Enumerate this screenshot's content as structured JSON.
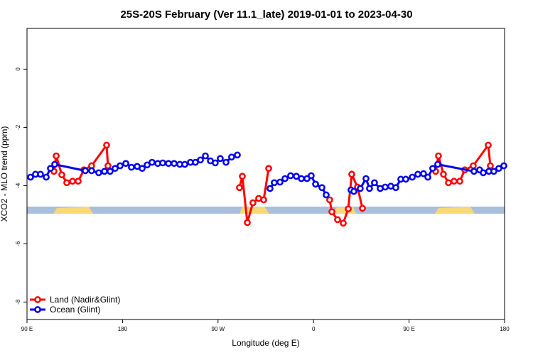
{
  "chart_data": {
    "type": "line",
    "title": "25S-20S February (Ver 11.1_late)   2019-01-01 to 2023-04-30",
    "x_label": "Longitude (deg E)",
    "y_label": "XCO2 - MLO trend (ppm)",
    "xlim": [
      90,
      540
    ],
    "ylim": [
      -8.6,
      1.4
    ],
    "xticks": [
      {
        "value": 90,
        "label": "90 E"
      },
      180,
      {
        "value": 270,
        "label": "90 W"
      },
      {
        "value": 360,
        "label": "0"
      },
      {
        "value": 450,
        "label": "90 E"
      },
      180
    ],
    "yticks": [
      0,
      -2,
      -4,
      -6,
      -8
    ],
    "legend": "bottom-left",
    "series": [
      {
        "name": "Land (Nadir&Glint)",
        "color": "#ff0000",
        "x": [
          115.4,
          117.5,
          122.8,
          127.5,
          132.9,
          138.2,
          143.6,
          150.9,
          165,
          166.3,
          null,
          290.2,
          292.9,
          297.6,
          302.9,
          308.3,
          313,
          317.7,
          null,
          375.2,
          377.3,
          382.6,
          388,
          392.7,
          396,
          401.4,
          406.1,
          null,
          475,
          477.7,
          482.4,
          487.1,
          492.4,
          497.8,
          502.5,
          510.5,
          524.6,
          526.6
        ],
        "values": [
          -3.51,
          -2.98,
          -3.63,
          -3.9,
          -3.85,
          -3.85,
          -3.46,
          -3.32,
          -2.61,
          -3.32,
          null,
          -4.07,
          -3.68,
          -5.27,
          -4.59,
          -4.44,
          -4.49,
          -3.41,
          null,
          -4.49,
          -4.9,
          -5.17,
          -5.29,
          -4.8,
          -3.61,
          -4.05,
          -4.78,
          null,
          -3.51,
          -2.98,
          -3.61,
          -3.9,
          -3.85,
          -3.85,
          -3.46,
          -3.32,
          -2.61,
          -3.32
        ]
      },
      {
        "name": "Ocean (Glint)",
        "color": "#0000ee",
        "x": [
          93.3,
          98,
          102.7,
          108.1,
          112.1,
          116.1,
          144.9,
          150.9,
          157.6,
          163,
          168.3,
          173,
          177.7,
          183.1,
          188.4,
          193.8,
          198.5,
          203.2,
          207.8,
          213.2,
          217.9,
          223.3,
          228.6,
          234,
          238.7,
          244,
          248.7,
          253.4,
          258.1,
          262.8,
          267.4,
          272.1,
          277.5,
          282.8,
          288.2,
          null,
          319,
          323,
          328.4,
          333.1,
          338.4,
          343.8,
          348.5,
          353.8,
          357.8,
          361.9,
          367.9,
          371.9,
          null,
          395.3,
          398,
          404,
          409.4,
          412.7,
          417.4,
          422.8,
          427.5,
          432.8,
          437.5,
          442.2,
          446.9,
          453,
          458.3,
          463.6,
          467.7,
          472.3,
          477,
          511.2,
          516.5,
          519.9,
          525.2,
          529.9,
          534.6,
          539.3
        ],
        "values": [
          -3.71,
          -3.61,
          -3.61,
          -3.71,
          -3.41,
          -3.27,
          -3.49,
          -3.49,
          -3.56,
          -3.51,
          -3.51,
          -3.41,
          -3.32,
          -3.24,
          -3.37,
          -3.34,
          -3.41,
          -3.29,
          -3.2,
          -3.24,
          -3.22,
          -3.24,
          -3.24,
          -3.27,
          -3.27,
          -3.2,
          -3.2,
          -3.12,
          -2.98,
          -3.15,
          -3.22,
          -3.07,
          -3.2,
          -3.02,
          -2.95,
          null,
          -4.1,
          -3.9,
          -3.88,
          -3.76,
          -3.66,
          -3.68,
          -3.76,
          -3.76,
          -3.66,
          -3.95,
          -4.07,
          -4.32,
          null,
          -4.15,
          -4.2,
          -4.1,
          -3.76,
          -4.1,
          -3.9,
          -4.1,
          -4.05,
          -4.02,
          -4.07,
          -3.78,
          -3.78,
          -3.71,
          -3.61,
          -3.59,
          -3.71,
          -3.41,
          -3.27,
          -3.51,
          -3.46,
          -3.56,
          -3.51,
          -3.51,
          -3.41,
          -3.32
        ]
      }
    ]
  }
}
